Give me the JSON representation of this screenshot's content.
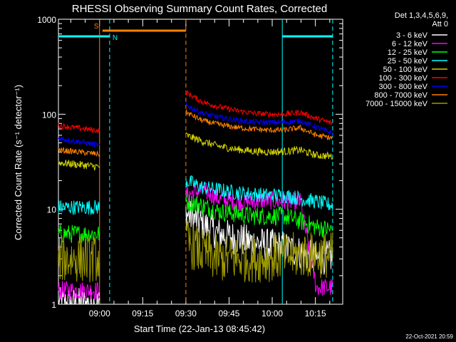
{
  "chart_data": {
    "type": "line",
    "title": "RHESSI Observing Summary Count Rates, Corrected",
    "xlabel": "Start Time (22-Jan-13 08:45:42)",
    "ylabel": "Corrected Count Rate (s⁻¹ detector⁻¹)",
    "y_scale": "log",
    "ylim": [
      1,
      1000
    ],
    "y_ticks": [
      {
        "value": 1,
        "label": "1"
      },
      {
        "value": 10,
        "label": "10"
      },
      {
        "value": 100,
        "label": "100"
      },
      {
        "value": 1000,
        "label": "1000"
      }
    ],
    "xlim": [
      "08:45:42",
      "10:24:30"
    ],
    "x_ticks": [
      "09:00",
      "09:15",
      "09:30",
      "09:45",
      "10:00",
      "10:15"
    ],
    "legend_title_lines": [
      "Det 1,3,4,5,6,9,",
      "Att 0"
    ],
    "legend_position": "right",
    "footer": "22-Oct-2021 20:59",
    "flag_labels": {
      "saa": "S",
      "night": "N"
    },
    "flags": {
      "saa": {
        "color": "#ff8000",
        "start": "09:01:00",
        "end": "09:30:00",
        "level": 650
      },
      "night": [
        {
          "color": "#00ffff",
          "start": "08:45:42",
          "end": "09:03:30",
          "level": 650
        },
        {
          "color": "#00ffff",
          "start": "10:03:30",
          "end": "10:21:00",
          "level": 650
        }
      ]
    },
    "vertical_lines": [
      {
        "time": "09:00:00",
        "color": "#ff8000",
        "style": "solid"
      },
      {
        "time": "09:03:30",
        "color": "#00ffff",
        "style": "dashed"
      },
      {
        "time": "09:30:00",
        "color": "#ff8000",
        "style": "dashed"
      },
      {
        "time": "10:03:30",
        "color": "#00ffff",
        "style": "solid"
      },
      {
        "time": "10:21:00",
        "color": "#00ffff",
        "style": "dashed"
      }
    ],
    "segment1": [
      "08:45:42",
      "09:00:00"
    ],
    "segment2": [
      "09:30:00",
      "10:21:00"
    ],
    "series": [
      {
        "name": "3 - 6 keV",
        "color": "#ffffff",
        "seg1": [
          1,
          1
        ],
        "seg2": [
          9,
          7,
          5.5,
          5,
          4.5,
          4.2,
          4.0,
          3.5,
          3,
          3.2
        ],
        "jitter": 0.18
      },
      {
        "name": "6 - 12 keV",
        "color": "#ff00ff",
        "seg1": [
          1.4,
          1.4
        ],
        "seg2": [
          14,
          16,
          13,
          12,
          12,
          12.5,
          12,
          12,
          1.5,
          1.5
        ],
        "jitter": 0.1
      },
      {
        "name": "12 - 25 keV",
        "color": "#00ff00",
        "seg1": [
          5.5,
          5.5
        ],
        "seg2": [
          12,
          11,
          9.5,
          9,
          8.5,
          8.5,
          8.5,
          7.5,
          6.5,
          6
        ],
        "jitter": 0.1
      },
      {
        "name": "25 - 50 keV",
        "color": "#00ffff",
        "seg1": [
          10.5,
          10.5
        ],
        "seg2": [
          20,
          17,
          16,
          15,
          14.5,
          14,
          14,
          13,
          12,
          11
        ],
        "jitter": 0.08
      },
      {
        "name": "50 - 100 keV",
        "color": "#d4d400",
        "seg1": [
          31,
          28
        ],
        "seg2": [
          60,
          52,
          46,
          43,
          41,
          40,
          40.5,
          42,
          37,
          36
        ],
        "jitter": 0.04
      },
      {
        "name": "100 - 300 keV",
        "color": "#ff0000",
        "seg1": [
          76,
          67
        ],
        "seg2": [
          170,
          135,
          120,
          110,
          103,
          100,
          100,
          105,
          90,
          80
        ],
        "jitter": 0.03
      },
      {
        "name": "300 - 800 keV",
        "color": "#0000ff",
        "seg1": [
          56,
          47
        ],
        "seg2": [
          125,
          103,
          93,
          87,
          83,
          82,
          82,
          85,
          73,
          63
        ],
        "jitter": 0.03
      },
      {
        "name": "800 - 7000 keV",
        "color": "#ff8000",
        "seg1": [
          42,
          38
        ],
        "seg2": [
          105,
          86,
          78,
          73,
          70,
          68,
          68,
          72,
          60,
          56
        ],
        "jitter": 0.03
      },
      {
        "name": "7000 - 15000 keV",
        "color": "#9e9a00",
        "seg1": [
          3,
          3
        ],
        "seg2": [
          4.5,
          3.5,
          3,
          3,
          3,
          3,
          3.2,
          3.3,
          3.3,
          3.3
        ],
        "jitter": 0.25
      }
    ]
  }
}
